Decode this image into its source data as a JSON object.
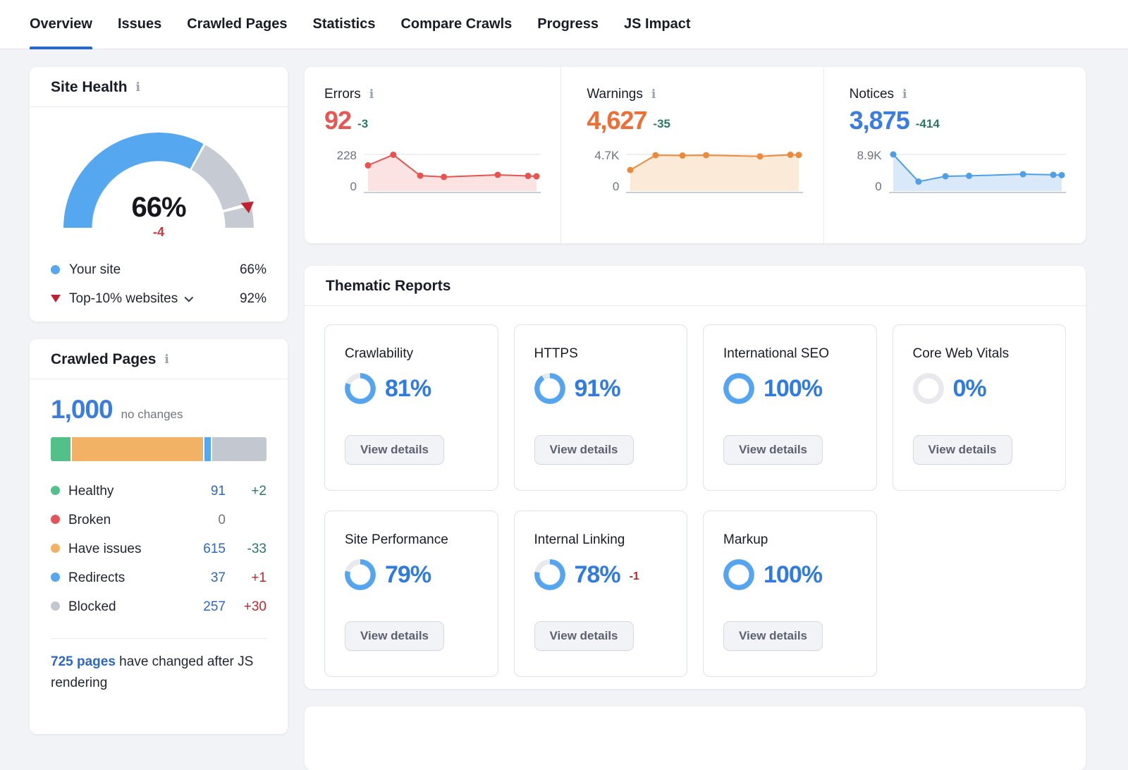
{
  "nav": {
    "tabs": [
      {
        "label": "Overview",
        "active": true
      },
      {
        "label": "Issues",
        "active": false
      },
      {
        "label": "Crawled Pages",
        "active": false
      },
      {
        "label": "Statistics",
        "active": false
      },
      {
        "label": "Compare Crawls",
        "active": false
      },
      {
        "label": "Progress",
        "active": false
      },
      {
        "label": "JS Impact",
        "active": false
      }
    ]
  },
  "site_health": {
    "title": "Site Health",
    "score_label": "66%",
    "delta_label": "-4",
    "legend": [
      {
        "label": "Your site",
        "value": "66%"
      },
      {
        "label": "Top-10% websites",
        "value": "92%"
      }
    ]
  },
  "metrics": [
    {
      "label": "Errors",
      "value": "92",
      "delta": "-3",
      "value_color": "#e85654",
      "ymax": "228",
      "ymin": "0"
    },
    {
      "label": "Warnings",
      "value": "4,627",
      "delta": "-35",
      "value_color": "#ec6f38",
      "ymax": "4.7K",
      "ymin": "0"
    },
    {
      "label": "Notices",
      "value": "3,875",
      "delta": "-414",
      "value_color": "#3b7ddd",
      "ymax": "8.9K",
      "ymin": "0"
    }
  ],
  "crawled_pages": {
    "title": "Crawled Pages",
    "total": "1,000",
    "total_note": "no changes",
    "legend": [
      {
        "label": "Healthy",
        "value": "91",
        "delta": "+2",
        "delta_color": "#2b7a5e",
        "dot": "#53c08a"
      },
      {
        "label": "Broken",
        "value": "0",
        "delta": "",
        "delta_color": "#2b7a5e",
        "dot": "#e2555a"
      },
      {
        "label": "Have issues",
        "value": "615",
        "delta": "-33",
        "delta_color": "#2b7a5e",
        "dot": "#f1b266"
      },
      {
        "label": "Redirects",
        "value": "37",
        "delta": "+1",
        "delta_color": "#c9232e",
        "dot": "#55a7ef"
      },
      {
        "label": "Blocked",
        "value": "257",
        "delta": "+30",
        "delta_color": "#c9232e",
        "dot": "#c3c8d0"
      }
    ],
    "footer_link": "725 pages",
    "footer_rest": " have changed after JS rendering"
  },
  "thematic": {
    "title": "Thematic Reports",
    "button_label": "View details",
    "cards": [
      {
        "name": "Crawlability",
        "pct": 81,
        "pct_label": "81%"
      },
      {
        "name": "HTTPS",
        "pct": 91,
        "pct_label": "91%"
      },
      {
        "name": "International SEO",
        "pct": 100,
        "pct_label": "100%"
      },
      {
        "name": "Core Web Vitals",
        "pct": 0,
        "pct_label": "0%"
      },
      {
        "name": "Site Performance",
        "pct": 79,
        "pct_label": "79%"
      },
      {
        "name": "Internal Linking",
        "pct": 78,
        "pct_label": "78%",
        "delta": "-1"
      },
      {
        "name": "Markup",
        "pct": 100,
        "pct_label": "100%"
      }
    ]
  },
  "chart_data": [
    {
      "type": "area",
      "name": "errors-trend",
      "x": [
        0,
        15,
        31,
        45,
        77,
        95,
        100
      ],
      "values": [
        160,
        226,
        96,
        88,
        101,
        94,
        92
      ],
      "ylim": [
        0,
        228
      ],
      "yticks": [
        "228",
        "0"
      ],
      "grid": true,
      "legend_position": "none",
      "line_color": "#e8524f",
      "fill_color": "#fae3e2"
    },
    {
      "type": "area",
      "name": "warnings-trend",
      "x": [
        0,
        15,
        31,
        45,
        77,
        95,
        100
      ],
      "values": [
        2700,
        4600,
        4560,
        4600,
        4450,
        4660,
        4627
      ],
      "ylim": [
        0,
        4700
      ],
      "yticks": [
        "4.7K",
        "0"
      ],
      "grid": true,
      "legend_position": "none",
      "line_color": "#ec8a3c",
      "fill_color": "#fbead8"
    },
    {
      "type": "area",
      "name": "notices-trend",
      "x": [
        0,
        15,
        31,
        45,
        77,
        95,
        100
      ],
      "values": [
        8900,
        2300,
        3600,
        3700,
        4100,
        3950,
        3875
      ],
      "ylim": [
        0,
        8900
      ],
      "yticks": [
        "8.9K",
        "0"
      ],
      "grid": true,
      "legend_position": "none",
      "line_color": "#4d9fe8",
      "fill_color": "#d9e9fa"
    },
    {
      "type": "gauge",
      "name": "site-health-gauge",
      "value": 66,
      "comparison": 92,
      "max": 100,
      "value_color": "#55a7ef",
      "track_color": "#c6cbd3",
      "marker_color": "#c22134"
    },
    {
      "type": "bar",
      "name": "crawled-pages-distribution",
      "total": 1000,
      "segments": [
        {
          "label": "Healthy",
          "value": 91,
          "color": "#53c08a"
        },
        {
          "label": "Have issues",
          "value": 615,
          "color": "#f1b266"
        },
        {
          "label": "Redirects",
          "value": 37,
          "color": "#55a7ef"
        },
        {
          "label": "Blocked",
          "value": 257,
          "color": "#c3c8d0"
        }
      ]
    },
    {
      "type": "donut",
      "name": "thematic-report-scores",
      "values": [
        {
          "label": "Crawlability",
          "pct": 81
        },
        {
          "label": "HTTPS",
          "pct": 91
        },
        {
          "label": "International SEO",
          "pct": 100
        },
        {
          "label": "Core Web Vitals",
          "pct": 0
        },
        {
          "label": "Site Performance",
          "pct": 79
        },
        {
          "label": "Internal Linking",
          "pct": 78
        },
        {
          "label": "Markup",
          "pct": 100
        }
      ],
      "ring_color": "#55a4ef",
      "track_color": "#e7e9ed"
    }
  ]
}
